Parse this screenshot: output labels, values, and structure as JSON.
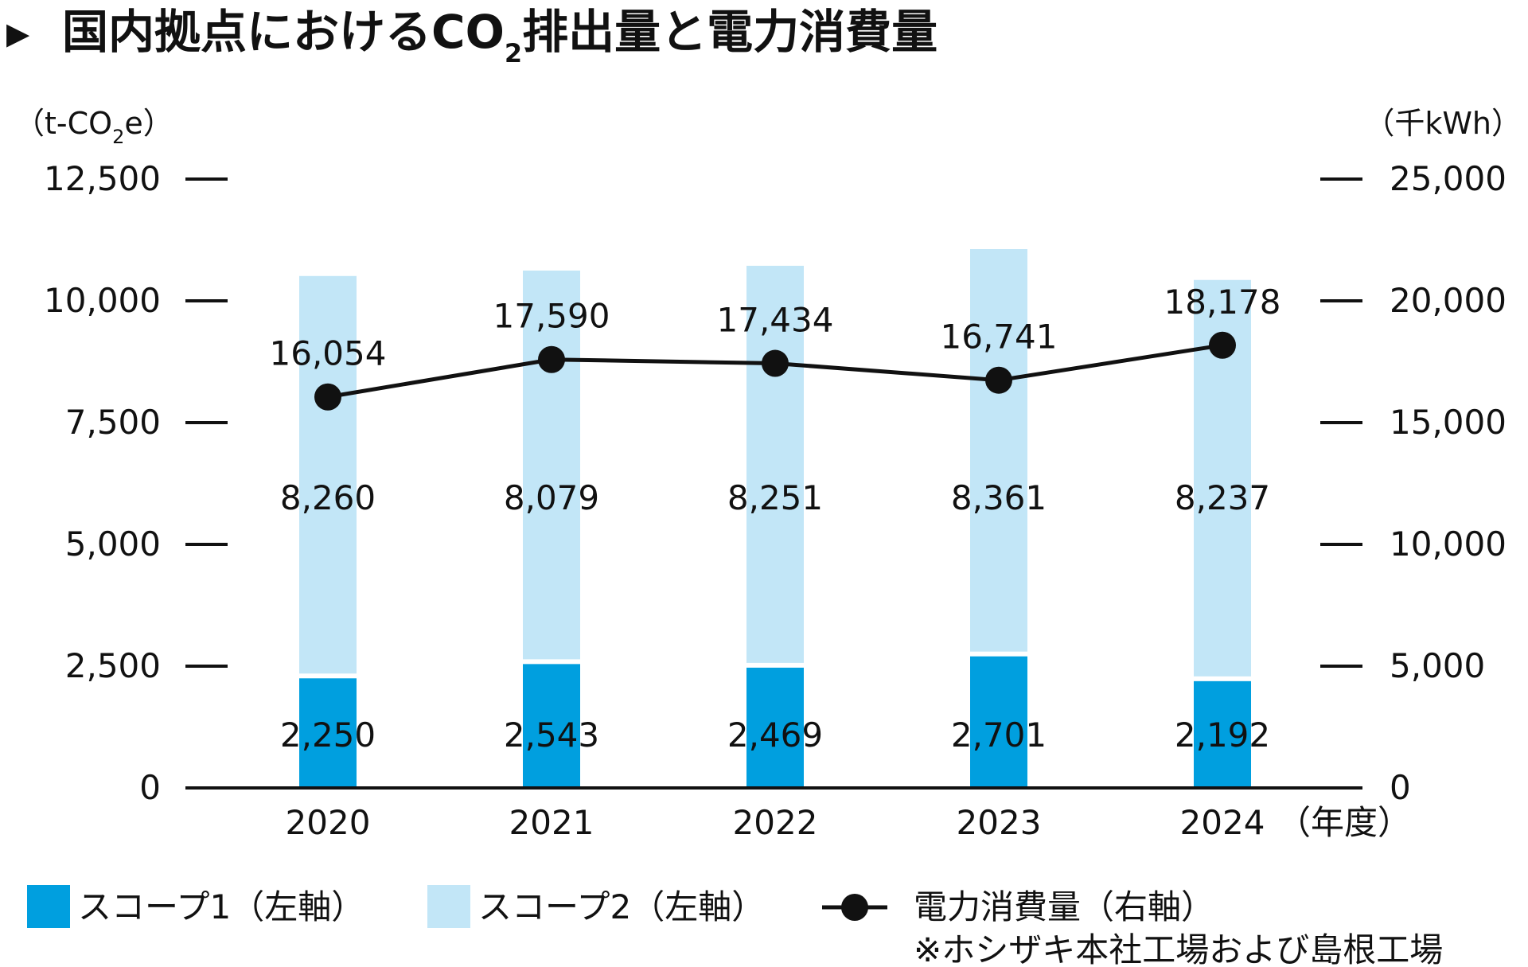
{
  "chart_data": {
    "type": "bar",
    "title_marker": "▶",
    "title": "国内拠点におけるCO",
    "title_sub": "2",
    "title_rest": "排出量と電力消費量",
    "left_unit": {
      "pre": "（t-CO",
      "sub": "2",
      "post": "e）"
    },
    "right_unit": "（千kWh）",
    "x_unit": "（年度）",
    "categories": [
      "2020",
      "2021",
      "2022",
      "2023",
      "2024"
    ],
    "left_ylim": [
      0,
      12500
    ],
    "right_ylim": [
      0,
      25000
    ],
    "left_ticks": [
      "0",
      "2,500",
      "5,000",
      "7,500",
      "10,000",
      "12,500"
    ],
    "left_tick_values": [
      0,
      2500,
      5000,
      7500,
      10000,
      12500
    ],
    "right_ticks": [
      "0",
      "5,000",
      "10,000",
      "15,000",
      "20,000",
      "25,000"
    ],
    "right_tick_values": [
      0,
      5000,
      10000,
      15000,
      20000,
      25000
    ],
    "series": [
      {
        "name": "スコープ1（左軸）",
        "type": "bar",
        "axis": "left",
        "color": "#009fdf",
        "values": [
          2250,
          2543,
          2469,
          2701,
          2192
        ],
        "labels": [
          "2,250",
          "2,543",
          "2,469",
          "2,701",
          "2,192"
        ]
      },
      {
        "name": "スコープ2（左軸）",
        "type": "bar",
        "axis": "left",
        "color": "#c2e6f7",
        "values": [
          8260,
          8079,
          8251,
          8361,
          8237
        ],
        "labels": [
          "8,260",
          "8,079",
          "8,251",
          "8,361",
          "8,237"
        ]
      },
      {
        "name": "電力消費量（右軸）",
        "type": "line",
        "axis": "right",
        "color": "#111111",
        "values": [
          16054,
          17590,
          17434,
          16741,
          18178
        ],
        "labels": [
          "16,054",
          "17,590",
          "17,434",
          "16,741",
          "18,178"
        ]
      }
    ],
    "stacked": true,
    "grid": false,
    "legend_placement": "bottom",
    "note": "※ホシザキ本社工場および島根工場"
  }
}
